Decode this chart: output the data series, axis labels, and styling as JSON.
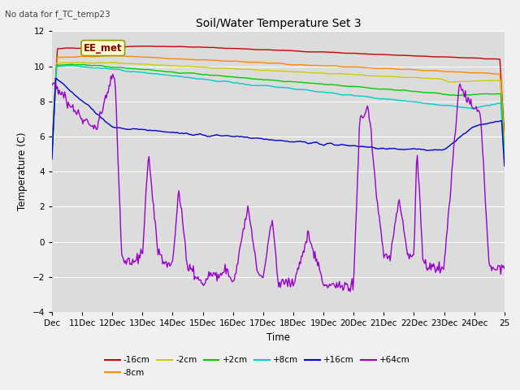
{
  "title": "Soil/Water Temperature Set 3",
  "subtitle": "No data for f_TC_temp23",
  "xlabel": "Time",
  "ylabel": "Temperature (C)",
  "annotation": "EE_met",
  "ylim": [
    -4,
    12
  ],
  "yticks": [
    -4,
    -2,
    0,
    2,
    4,
    6,
    8,
    10,
    12
  ],
  "xtick_labels": [
    "Dec",
    "11Dec",
    "12Dec",
    "13Dec",
    "14Dec",
    "15Dec",
    "16Dec",
    "17Dec",
    "18Dec",
    "19Dec",
    "20Dec",
    "21Dec",
    "22Dec",
    "23Dec",
    "24Dec",
    "25"
  ],
  "series": {
    "-16cm": {
      "color": "#cc0000"
    },
    "-8cm": {
      "color": "#ff8800"
    },
    "-2cm": {
      "color": "#cccc00"
    },
    "+2cm": {
      "color": "#00cc00"
    },
    "+8cm": {
      "color": "#00cccc"
    },
    "+16cm": {
      "color": "#0000cc"
    },
    "+64cm": {
      "color": "#9900cc"
    }
  },
  "fig_bg": "#f0f0f0",
  "plot_bg": "#dcdcdc",
  "grid_color": "#ffffff",
  "lw": 1.0
}
